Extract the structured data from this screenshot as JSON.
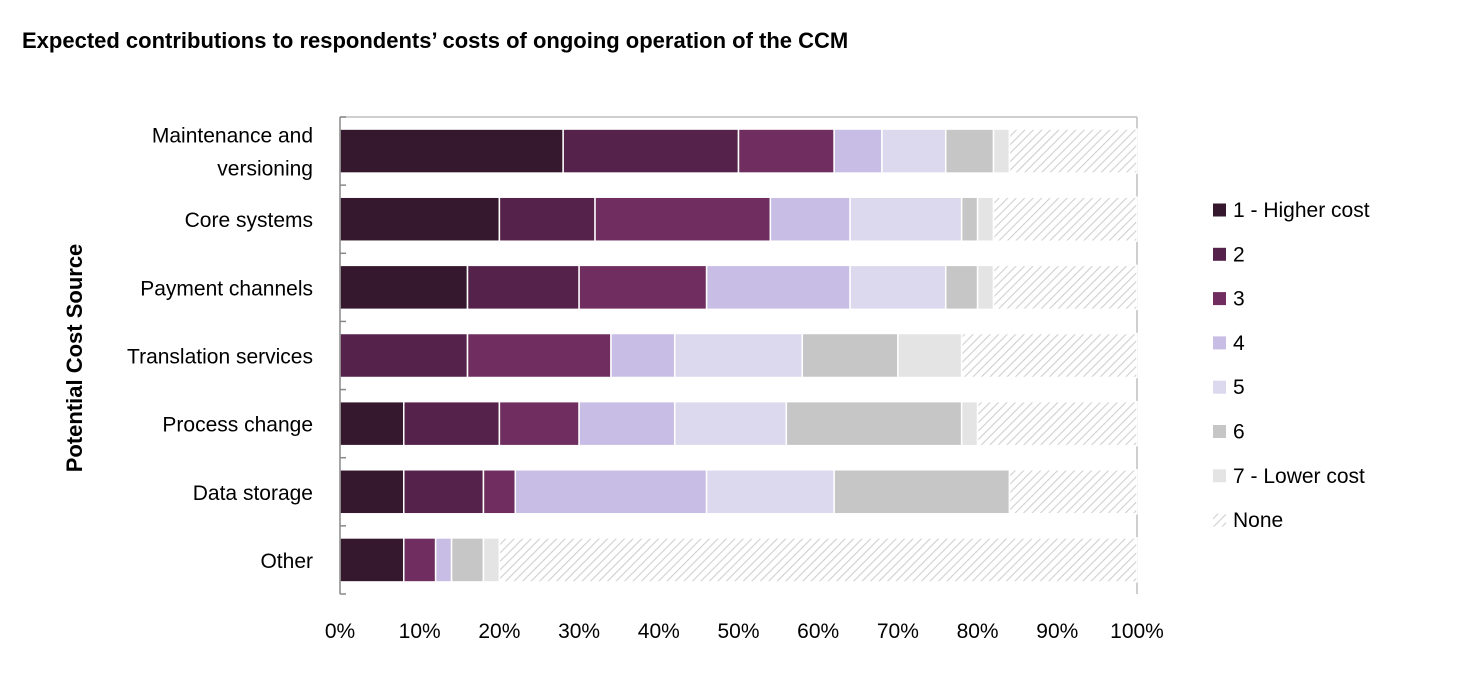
{
  "chart_data": {
    "type": "bar",
    "orientation": "horizontal",
    "stacked": "percent",
    "title": "Expected contributions to respondents’ costs of ongoing operation of the CCM",
    "ylabel": "Potential Cost Source",
    "xlabel": "",
    "xlim": [
      0,
      100
    ],
    "xticks": [
      "0%",
      "10%",
      "20%",
      "30%",
      "40%",
      "50%",
      "60%",
      "70%",
      "80%",
      "90%",
      "100%"
    ],
    "categories": [
      [
        "Maintenance and",
        "versioning"
      ],
      [
        "Core systems"
      ],
      [
        "Payment channels"
      ],
      [
        "Translation services"
      ],
      [
        "Process change"
      ],
      [
        "Data storage"
      ],
      [
        "Other"
      ]
    ],
    "legend_position": "right",
    "grid": false,
    "series": [
      {
        "name": "1 - Higher cost",
        "color": "#35182d",
        "values": [
          28,
          20,
          16,
          0,
          8,
          8,
          8
        ]
      },
      {
        "name": "2",
        "color": "#54224a",
        "values": [
          22,
          12,
          14,
          16,
          12,
          10,
          0
        ]
      },
      {
        "name": "3",
        "color": "#6f2d60",
        "values": [
          12,
          22,
          16,
          18,
          10,
          4,
          4
        ]
      },
      {
        "name": "4",
        "color": "#c8bde4",
        "values": [
          6,
          10,
          18,
          8,
          12,
          24,
          2
        ]
      },
      {
        "name": "5",
        "color": "#dcd8ee",
        "values": [
          8,
          14,
          12,
          16,
          14,
          16,
          0
        ]
      },
      {
        "name": "6",
        "color": "#c6c6c6",
        "values": [
          6,
          2,
          4,
          12,
          22,
          22,
          4
        ]
      },
      {
        "name": "7 - Lower cost",
        "color": "#e4e4e4",
        "values": [
          2,
          2,
          2,
          8,
          2,
          0,
          2
        ]
      },
      {
        "name": "None",
        "color": "#d9d9d9",
        "pattern": "hatch",
        "values": [
          16,
          18,
          18,
          22,
          20,
          16,
          80
        ]
      }
    ]
  }
}
